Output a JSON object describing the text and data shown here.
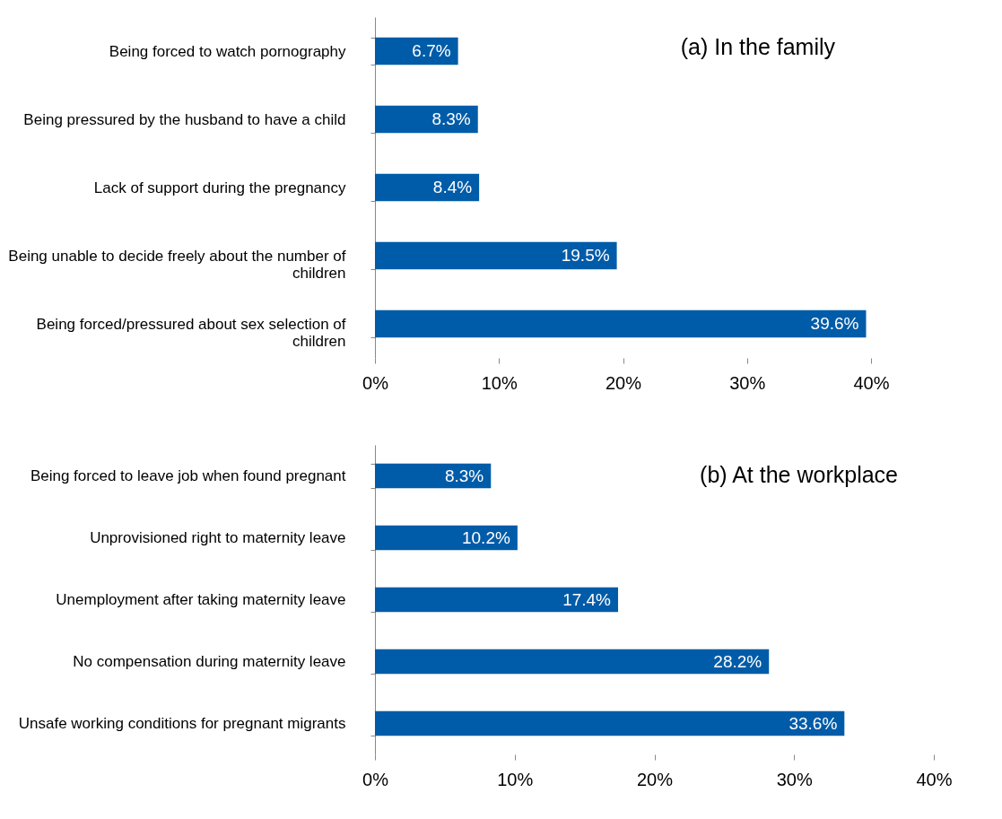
{
  "chart_data": [
    {
      "type": "bar",
      "orientation": "horizontal",
      "title": "(a) In the family",
      "categories": [
        "Being forced to watch pornography",
        "Being pressured by the husband to have a child",
        "Lack of support during the pregnancy",
        "Being unable to decide freely about the number of children",
        "Being forced/pressured about sex selection of children"
      ],
      "values": [
        6.7,
        8.3,
        8.4,
        19.5,
        39.6
      ],
      "value_labels": [
        "6.7%",
        "8.3%",
        "8.4%",
        "19.5%",
        "39.6%"
      ],
      "color": "#005ca8",
      "xlim": [
        0,
        40
      ],
      "xticks": [
        {
          "value": 0,
          "label": "0%"
        },
        {
          "value": 10,
          "label": "10%"
        },
        {
          "value": 20,
          "label": "20%"
        },
        {
          "value": 30,
          "label": "30%"
        },
        {
          "value": 40,
          "label": "40%"
        }
      ],
      "grid": false
    },
    {
      "type": "bar",
      "orientation": "horizontal",
      "title": "(b) At the workplace",
      "categories": [
        "Being forced to leave job when found pregnant",
        "Unprovisioned right to maternity leave",
        "Unemployment after taking maternity leave",
        "No compensation during maternity leave",
        "Unsafe working conditions for pregnant migrants"
      ],
      "values": [
        8.3,
        10.2,
        17.4,
        28.2,
        33.6
      ],
      "value_labels": [
        "8.3%",
        "10.2%",
        "17.4%",
        "28.2%",
        "33.6%"
      ],
      "color": "#005ca8",
      "xlim": [
        0,
        40
      ],
      "xticks": [
        {
          "value": 0,
          "label": "0%"
        },
        {
          "value": 10,
          "label": "10%"
        },
        {
          "value": 20,
          "label": "20%"
        },
        {
          "value": 30,
          "label": "30%"
        },
        {
          "value": 40,
          "label": "40%"
        }
      ],
      "grid": false
    }
  ]
}
